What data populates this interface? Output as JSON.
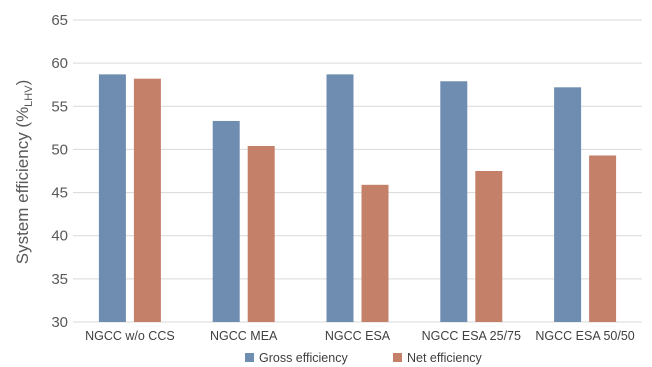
{
  "chart_data": {
    "type": "bar",
    "categories": [
      "NGCC w/o CCS",
      "NGCC MEA",
      "NGCC ESA",
      "NGCC ESA 25/75",
      "NGCC ESA 50/50"
    ],
    "series": [
      {
        "name": "Gross efficiency",
        "values": [
          58.7,
          53.3,
          58.7,
          57.9,
          57.2
        ],
        "color": "#6f8db0"
      },
      {
        "name": "Net efficiency",
        "values": [
          58.2,
          50.4,
          45.9,
          47.5,
          49.3
        ],
        "color": "#c5806a"
      }
    ],
    "title": "",
    "xlabel": "",
    "ylabel": "System efficiency (%",
    "ylabel_subscript": "LHV",
    "ylabel_suffix": ")",
    "ylim": [
      30,
      65
    ],
    "yticks": [
      "30",
      "35",
      "40",
      "45",
      "50",
      "55",
      "60",
      "65"
    ],
    "grid": true,
    "legend_position": "bottom"
  }
}
